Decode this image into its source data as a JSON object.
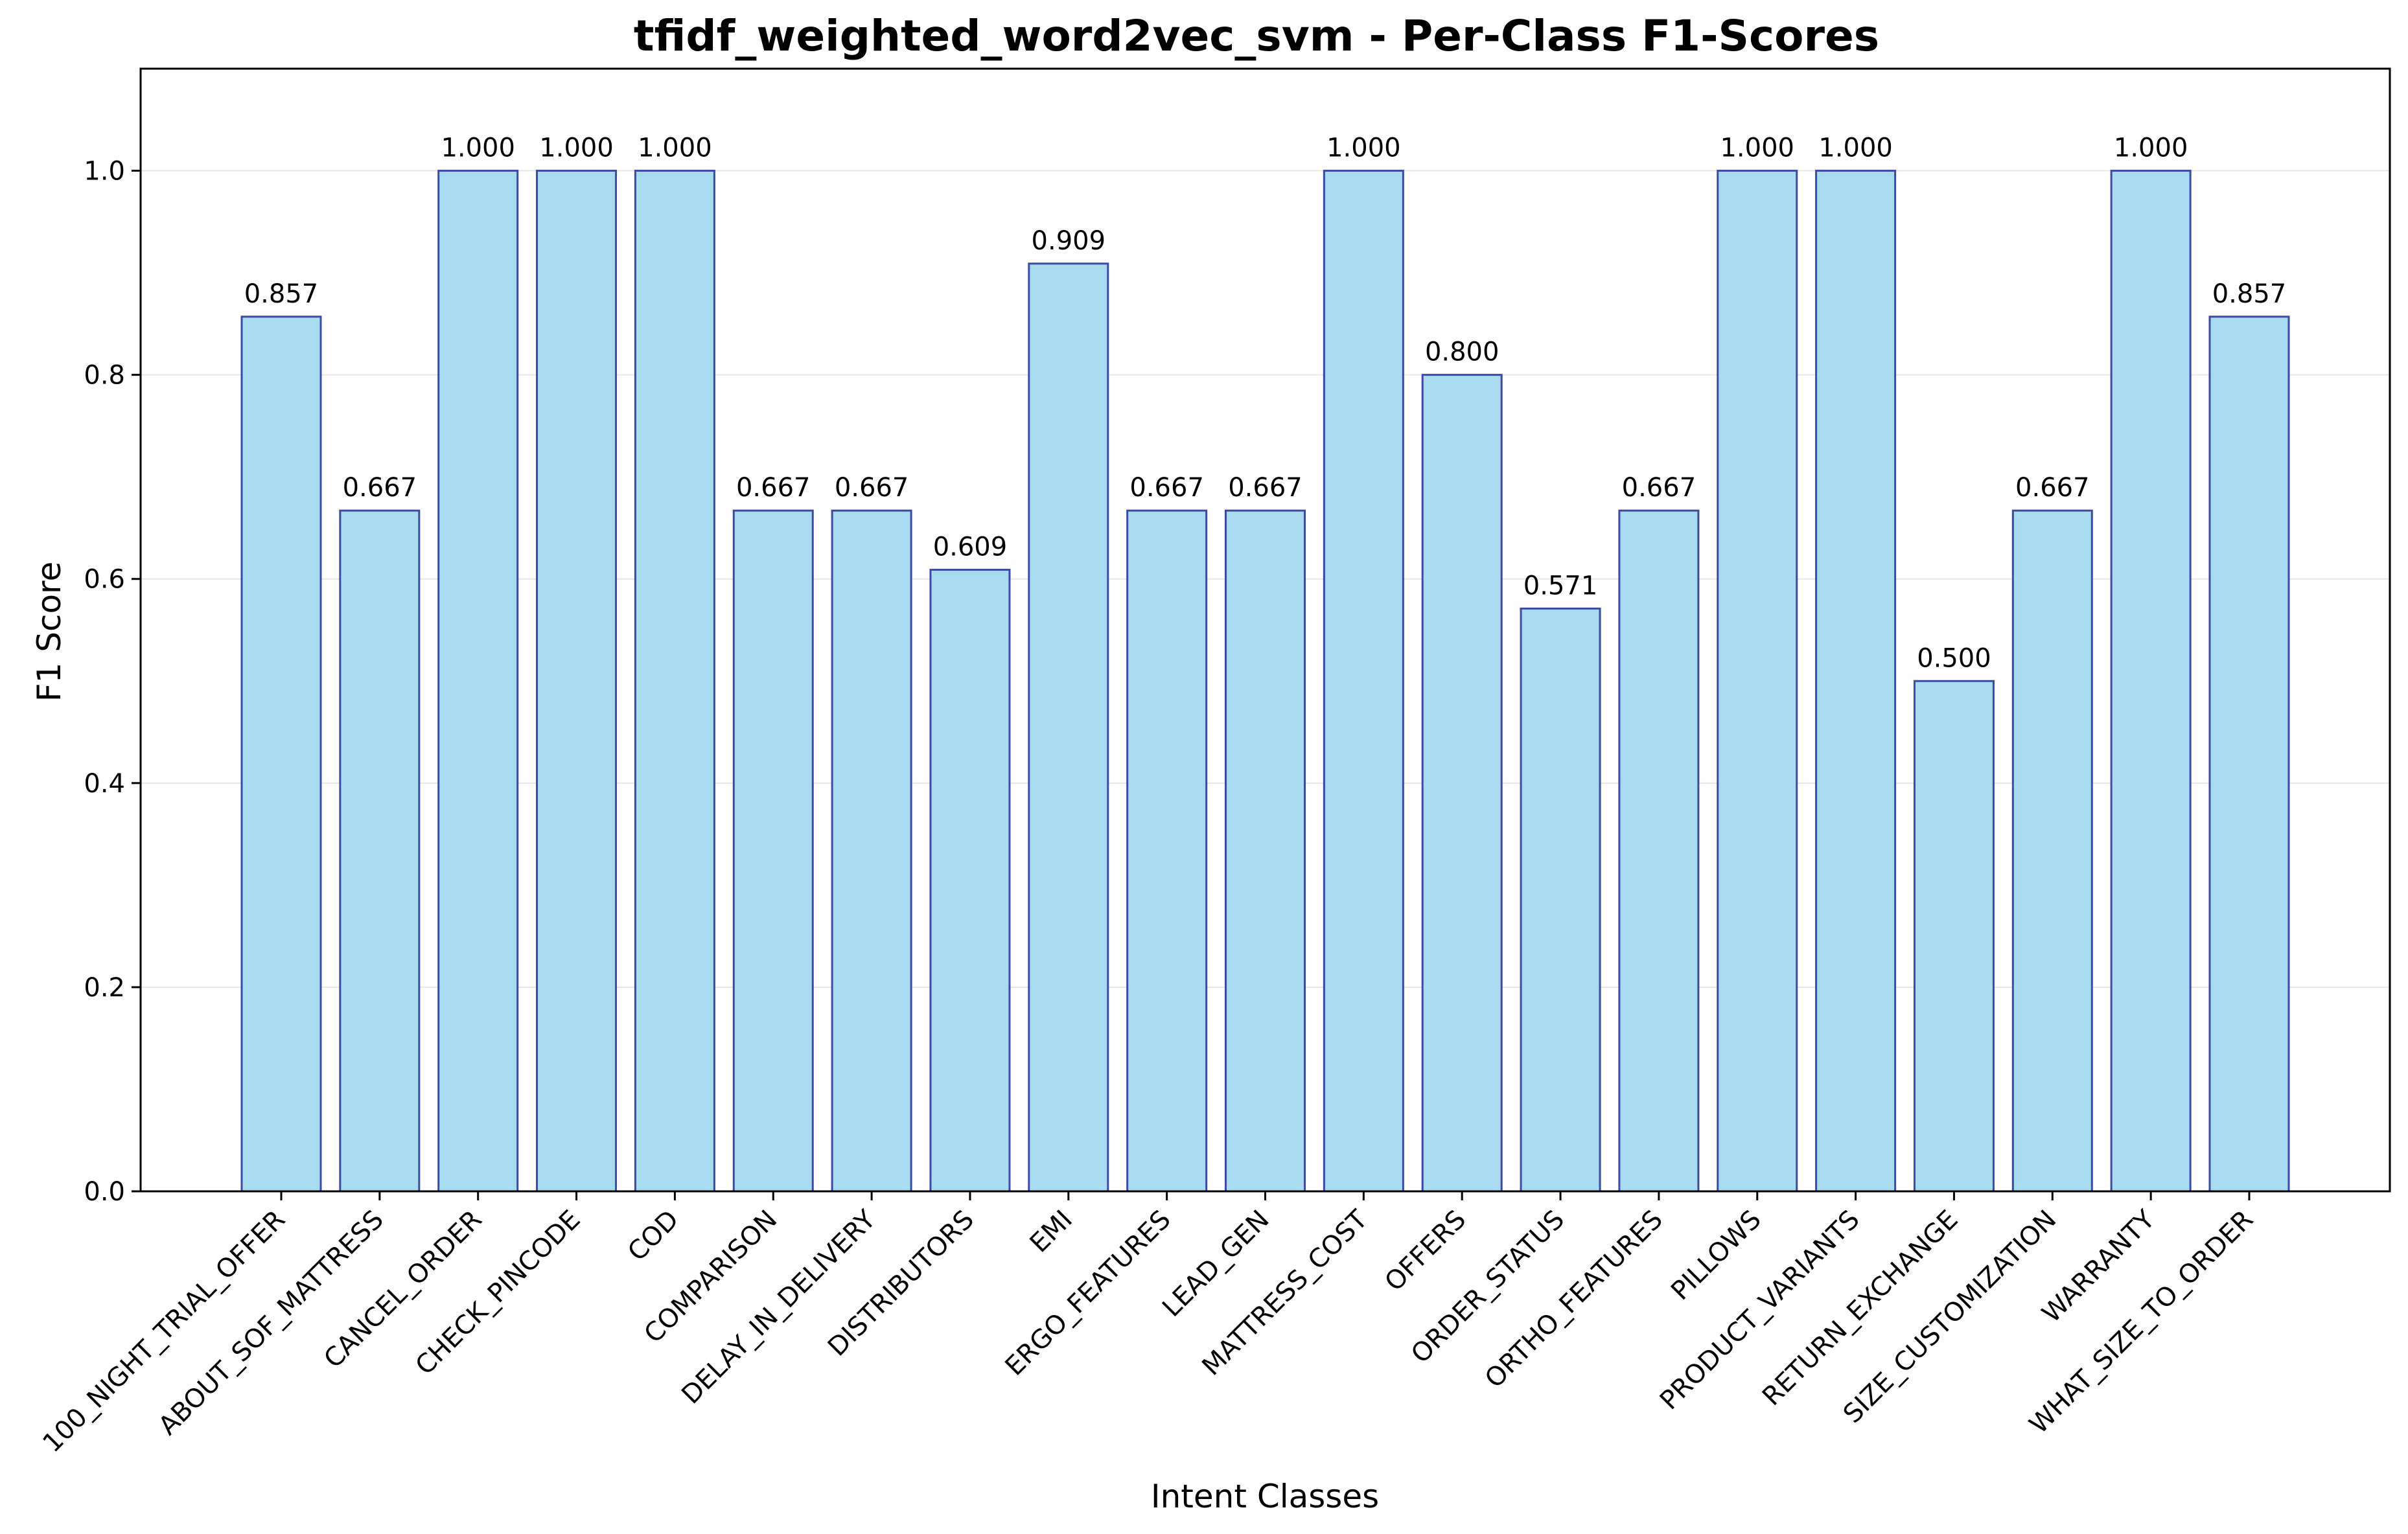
{
  "chart_data": {
    "type": "bar",
    "title": "tfidf_weighted_word2vec_svm - Per-Class F1-Scores",
    "xlabel": "Intent Classes",
    "ylabel": "F1 Score",
    "ylim": [
      0,
      1.1
    ],
    "yticks": [
      0.0,
      0.2,
      0.4,
      0.6,
      0.8,
      1.0
    ],
    "ytick_labels": [
      "0.0",
      "0.2",
      "0.4",
      "0.6",
      "0.8",
      "1.0"
    ],
    "grid": "horizontal",
    "bar_color": "#a8dbef",
    "bar_edge_color": "#3b4aa8",
    "categories": [
      "100_NIGHT_TRIAL_OFFER",
      "ABOUT_SOF_MATTRESS",
      "CANCEL_ORDER",
      "CHECK_PINCODE",
      "COD",
      "COMPARISON",
      "DELAY_IN_DELIVERY",
      "DISTRIBUTORS",
      "EMI",
      "ERGO_FEATURES",
      "LEAD_GEN",
      "MATTRESS_COST",
      "OFFERS",
      "ORDER_STATUS",
      "ORTHO_FEATURES",
      "PILLOWS",
      "PRODUCT_VARIANTS",
      "RETURN_EXCHANGE",
      "SIZE_CUSTOMIZATION",
      "WARRANTY",
      "WHAT_SIZE_TO_ORDER"
    ],
    "values": [
      0.857,
      0.667,
      1.0,
      1.0,
      1.0,
      0.667,
      0.667,
      0.609,
      0.909,
      0.667,
      0.667,
      1.0,
      0.8,
      0.571,
      0.667,
      1.0,
      1.0,
      0.5,
      0.667,
      1.0,
      0.857
    ],
    "value_labels": [
      "0.857",
      "0.667",
      "1.000",
      "1.000",
      "1.000",
      "0.667",
      "0.667",
      "0.609",
      "0.909",
      "0.667",
      "0.667",
      "1.000",
      "0.800",
      "0.571",
      "0.667",
      "1.000",
      "1.000",
      "0.500",
      "0.667",
      "1.000",
      "0.857"
    ]
  }
}
